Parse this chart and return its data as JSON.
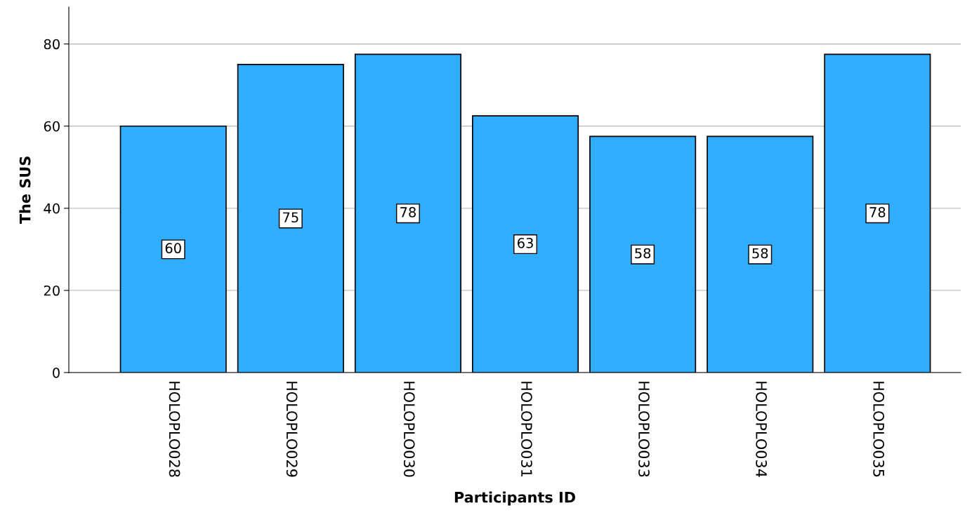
{
  "chart_data": {
    "type": "bar",
    "xlabel": "Participants ID",
    "ylabel": "The SUS",
    "categories": [
      "HOLOPLO028",
      "HOLOPLO029",
      "HOLOPLO030",
      "HOLOPLO031",
      "HOLOPLO033",
      "HOLOPLO034",
      "HOLOPLO035"
    ],
    "values": [
      60,
      75,
      77.5,
      62.5,
      57.5,
      57.5,
      77.5
    ],
    "value_labels": [
      "60",
      "75",
      "78",
      "63",
      "58",
      "58",
      "78"
    ],
    "color": "#30adfd",
    "ylim": [
      0,
      89
    ],
    "yticks": [
      0,
      20,
      40,
      60,
      80
    ],
    "grid": "y",
    "legend": false
  }
}
